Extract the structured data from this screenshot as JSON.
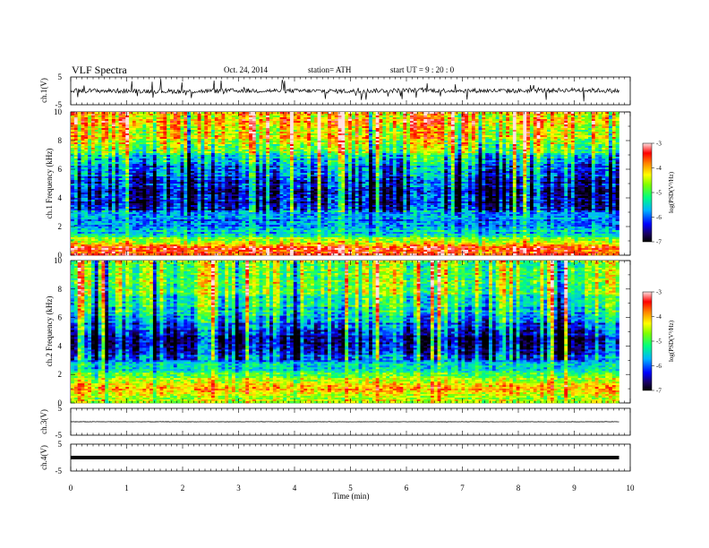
{
  "header": {
    "title": "VLF  Spectra",
    "date": "Oct. 24, 2014",
    "station": "station= ATH",
    "start": "start  UT  =   9  : 20 : 0"
  },
  "chart_data": [
    {
      "type": "line",
      "panel": "ch1-waveform",
      "ylabel": "ch.1(V)",
      "ylim": [
        -5,
        5
      ],
      "yticks": [
        "5",
        "-5"
      ],
      "xlim": [
        0,
        10
      ],
      "data_extent_x": [
        0,
        9.8
      ],
      "series": [
        {
          "x": [
            0,
            1,
            2,
            3,
            4,
            5,
            6,
            7,
            8,
            9,
            9.8
          ],
          "y": [
            0.1,
            0.0,
            -0.2,
            0.1,
            0.0,
            -0.1,
            0.2,
            0.1,
            0.0,
            0.3,
            0.0
          ]
        }
      ],
      "color": "#000000"
    },
    {
      "type": "heatmap",
      "panel": "ch1-spectrogram",
      "ylabel": "ch.1  Frequency  (kHz)",
      "ylim": [
        0,
        10
      ],
      "yticks": [
        "0",
        "2",
        "4",
        "6",
        "8",
        "10"
      ],
      "xlim": [
        0,
        10
      ],
      "data_extent_x": [
        0,
        9.8
      ],
      "colorbar": {
        "label": "log(PSD(V²/Hz)",
        "range": [
          -7,
          -3
        ],
        "ticks": [
          "-3",
          "-4",
          "-5",
          "-6",
          "-7"
        ]
      },
      "level_by_freq": [
        {
          "f": 0.3,
          "v": -3.5
        },
        {
          "f": 0.8,
          "v": -4.0
        },
        {
          "f": 1.5,
          "v": -5.5
        },
        {
          "f": 2.5,
          "v": -5.8
        },
        {
          "f": 4,
          "v": -6.6
        },
        {
          "f": 6,
          "v": -6.0
        },
        {
          "f": 8,
          "v": -4.4
        },
        {
          "f": 10,
          "v": -4.0
        }
      ]
    },
    {
      "type": "heatmap",
      "panel": "ch2-spectrogram",
      "ylabel": "ch.2  Frequency  (kHz)",
      "ylim": [
        0,
        10
      ],
      "yticks": [
        "0",
        "2",
        "4",
        "6",
        "8",
        "10"
      ],
      "xlim": [
        0,
        10
      ],
      "data_extent_x": [
        0,
        9.8
      ],
      "colorbar": {
        "label": "log(PSD(V²/Hz)",
        "range": [
          -7,
          -3
        ],
        "ticks": [
          "-3",
          "-4",
          "-5",
          "-6",
          "-7"
        ]
      },
      "level_by_freq": [
        {
          "f": 0.3,
          "v": -4.4
        },
        {
          "f": 1.2,
          "v": -4.0
        },
        {
          "f": 2.5,
          "v": -5.4
        },
        {
          "f": 4,
          "v": -6.5
        },
        {
          "f": 5,
          "v": -6.2
        },
        {
          "f": 6.5,
          "v": -5.2
        },
        {
          "f": 8,
          "v": -4.8
        },
        {
          "f": 10,
          "v": -4.6
        }
      ]
    },
    {
      "type": "line",
      "panel": "ch3-waveform",
      "ylabel": "ch.3(V)",
      "ylim": [
        -5,
        5
      ],
      "yticks": [
        "5",
        "-5"
      ],
      "xlim": [
        0,
        10
      ],
      "data_extent_x": [
        0,
        9.8
      ],
      "series": [
        {
          "x": [
            0,
            9.8
          ],
          "y": [
            0.0,
            0.0
          ]
        }
      ],
      "color": "#000000"
    },
    {
      "type": "line",
      "panel": "ch4-waveform",
      "ylabel": "ch.4(V)",
      "ylim": [
        -5,
        5
      ],
      "yticks": [
        "5",
        "-5"
      ],
      "xlim": [
        0,
        10
      ],
      "data_extent_x": [
        0,
        9.8
      ],
      "series": [
        {
          "x": [
            0,
            9.8
          ],
          "y": [
            0.0,
            0.0
          ]
        }
      ],
      "color": "#000000"
    }
  ],
  "xaxis": {
    "label": "Time  (min)",
    "ticks": [
      "0",
      "1",
      "2",
      "3",
      "4",
      "5",
      "6",
      "7",
      "8",
      "9",
      "10"
    ]
  }
}
